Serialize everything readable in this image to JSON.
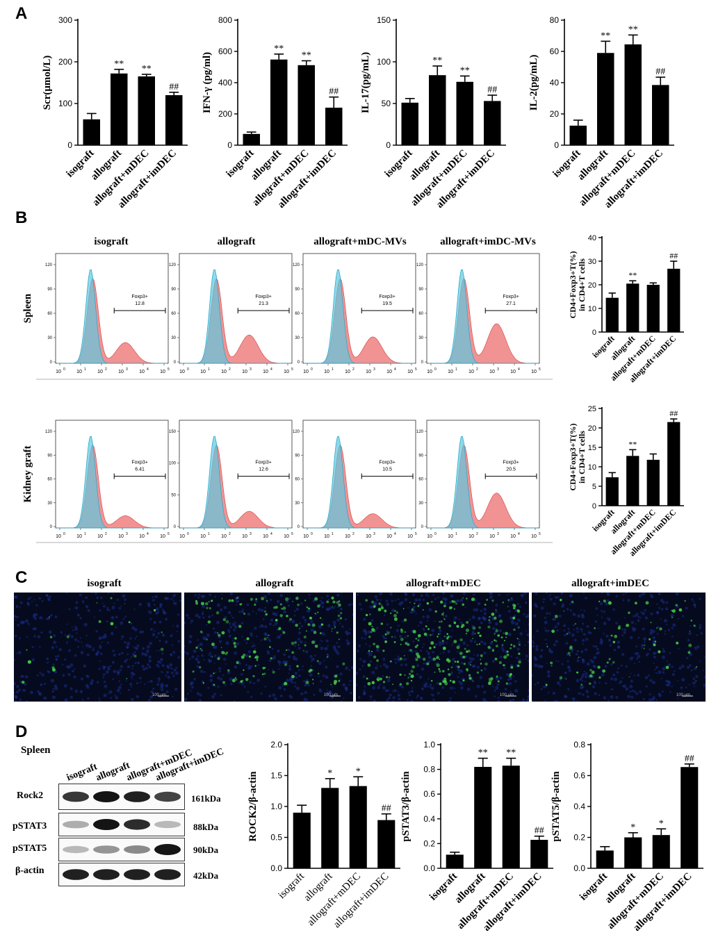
{
  "panels": {
    "A": "A",
    "B": "B",
    "C": "C",
    "D": "D"
  },
  "panelA": [
    {
      "ylabel": "Scr(μmol/L)",
      "ylim": [
        0,
        300
      ],
      "ticks": [
        0,
        100,
        200,
        300
      ],
      "categories": [
        "isograft",
        "allograft",
        "allograft+mDEC",
        "allograft+imDEC"
      ],
      "values": [
        62,
        172,
        165,
        120
      ],
      "errors": [
        14,
        10,
        5,
        7
      ],
      "sig": [
        "",
        "**",
        "**",
        "##"
      ]
    },
    {
      "ylabel": "IFN-γ (pg/ml)",
      "ylim": [
        0,
        800
      ],
      "ticks": [
        0,
        200,
        400,
        600,
        800
      ],
      "categories": [
        "isograft",
        "allograft",
        "allograft+mDEC",
        "allograft+imDEC"
      ],
      "values": [
        72,
        548,
        512,
        240
      ],
      "errors": [
        12,
        35,
        28,
        68
      ],
      "sig": [
        "",
        "**",
        "**",
        "##"
      ]
    },
    {
      "ylabel": "IL-17(pg/mL)",
      "ylim": [
        0,
        150
      ],
      "ticks": [
        0,
        50,
        100,
        150
      ],
      "categories": [
        "isograft",
        "allograft",
        "allograft+mDEC",
        "allograft+imDEC"
      ],
      "values": [
        51,
        84,
        76,
        53
      ],
      "errors": [
        5,
        11,
        7,
        7
      ],
      "sig": [
        "",
        "**",
        "**",
        "##"
      ]
    },
    {
      "ylabel": "IL-2(pg/mL)",
      "ylim": [
        0,
        80
      ],
      "ticks": [
        0,
        20,
        40,
        60,
        80
      ],
      "categories": [
        "isograft",
        "allograft",
        "allograft+mDEC",
        "allograft+imDEC"
      ],
      "values": [
        12.5,
        59,
        64.5,
        38.5
      ],
      "errors": [
        3.5,
        7.5,
        6,
        5
      ],
      "sig": [
        "",
        "**",
        "**",
        "##"
      ]
    }
  ],
  "panelB": {
    "columns": [
      "isograft",
      "allograft",
      "allograft+mDC-MVs",
      "allograft+imDC-MVs"
    ],
    "rows": [
      {
        "label": "Spleen",
        "gate": "Foxp3+",
        "gate_values": [
          "12.8",
          "21.3",
          "19.5",
          "27.1"
        ],
        "yticks": [
          [
            "0",
            "30",
            "60",
            "90",
            "120"
          ],
          [
            "0",
            "30",
            "60",
            "90",
            "120"
          ],
          [
            "0",
            "30",
            "60",
            "90",
            "120"
          ],
          [
            "0",
            "30",
            "60",
            "90",
            "120"
          ]
        ]
      },
      {
        "label": "Kidney graft",
        "gate": "Foxp3+",
        "gate_values": [
          "6.41",
          "12.6",
          "10.5",
          "20.5"
        ],
        "yticks": [
          [
            "0",
            "30",
            "60",
            "90",
            "120"
          ],
          [
            "0",
            "50",
            "100",
            "150"
          ],
          [
            "0",
            "30",
            "60",
            "90",
            "120"
          ],
          [
            "0",
            "30",
            "60",
            "90",
            "120"
          ]
        ]
      }
    ],
    "xtick_exponents": [
      "0",
      "1",
      "2",
      "3",
      "4",
      "5"
    ],
    "bars": [
      {
        "ylabel": "CD4+Foxp3+T(%)",
        "ylabel2": "in CD4+T cells",
        "ylim": [
          0,
          40
        ],
        "ticks": [
          0,
          10,
          20,
          30,
          40
        ],
        "categories": [
          "isograft",
          "allograft",
          "allograft+mDEC",
          "allograft+imDEC"
        ],
        "values": [
          14.5,
          20.5,
          20,
          26.8
        ],
        "errors": [
          2,
          1.2,
          0.8,
          3.2
        ],
        "sig": [
          "",
          "**",
          "",
          "##"
        ]
      },
      {
        "ylabel": "CD4+Foxp3+T(%)",
        "ylabel2": "in CD4+T cells",
        "ylim": [
          0,
          25
        ],
        "ticks": [
          0,
          5,
          10,
          15,
          20,
          25
        ],
        "categories": [
          "isograft",
          "allograft",
          "allograft+mDEC",
          "allograft+imDEC"
        ],
        "values": [
          7.3,
          12.8,
          11.8,
          21.5
        ],
        "errors": [
          1.2,
          1.6,
          1.5,
          0.8
        ],
        "sig": [
          "",
          "**",
          "",
          "##"
        ]
      }
    ]
  },
  "panelC": {
    "titles": [
      "isograft",
      "allograft",
      "allograft+mDEC",
      "allograft+imDEC"
    ],
    "scale": "100 μm"
  },
  "panelD": {
    "tissue": "Spleen",
    "lanes": [
      "isograft",
      "allograft",
      "allograft+mDEC",
      "allograft+imDEC"
    ],
    "blots": [
      {
        "name": "Rock2",
        "kda": "161kDa",
        "intensity": [
          0.85,
          1,
          0.95,
          0.8
        ]
      },
      {
        "name": "pSTAT3",
        "kda": "88kDa",
        "intensity": [
          0.35,
          1,
          0.9,
          0.3
        ]
      },
      {
        "name": "pSTAT5",
        "kda": "90kDa",
        "intensity": [
          0.3,
          0.45,
          0.5,
          1
        ]
      },
      {
        "name": "β-actin",
        "kda": "42kDa",
        "intensity": [
          0.95,
          0.95,
          0.95,
          0.95
        ]
      }
    ],
    "charts": [
      {
        "ylabel": "ROCK2/β-actin",
        "ylim": [
          0,
          2.0
        ],
        "ticks": [
          "0.0",
          "0.5",
          "1.0",
          "1.5",
          "2.0"
        ],
        "categories": [
          "isograft",
          "allograft",
          "allograft+mDEC",
          "allograft+imDEC"
        ],
        "values": [
          0.9,
          1.3,
          1.33,
          0.78
        ],
        "errors": [
          0.12,
          0.15,
          0.15,
          0.1
        ],
        "sig": [
          "",
          "*",
          "*",
          "##"
        ],
        "boldcats": false
      },
      {
        "ylabel": "pSTAT3/β-actin",
        "ylim": [
          0,
          1.0
        ],
        "ticks": [
          "0.0",
          "0.2",
          "0.4",
          "0.6",
          "0.8",
          "1.0"
        ],
        "categories": [
          "isograft",
          "allograft",
          "allograft+mDEC",
          "allograft+imDEC"
        ],
        "values": [
          0.11,
          0.82,
          0.83,
          0.23
        ],
        "errors": [
          0.02,
          0.07,
          0.06,
          0.03
        ],
        "sig": [
          "",
          "**",
          "**",
          "##"
        ],
        "boldcats": true
      },
      {
        "ylabel": "pSTAT5/β-actin",
        "ylim": [
          0,
          0.8
        ],
        "ticks": [
          "0.0",
          "0.2",
          "0.4",
          "0.6",
          "0.8"
        ],
        "categories": [
          "isograft",
          "allograft",
          "allograft+mDEC",
          "allograft+imDEC"
        ],
        "values": [
          0.115,
          0.2,
          0.215,
          0.655
        ],
        "errors": [
          0.025,
          0.03,
          0.04,
          0.02
        ],
        "sig": [
          "",
          "*",
          "*",
          "##"
        ],
        "boldcats": true
      }
    ]
  }
}
